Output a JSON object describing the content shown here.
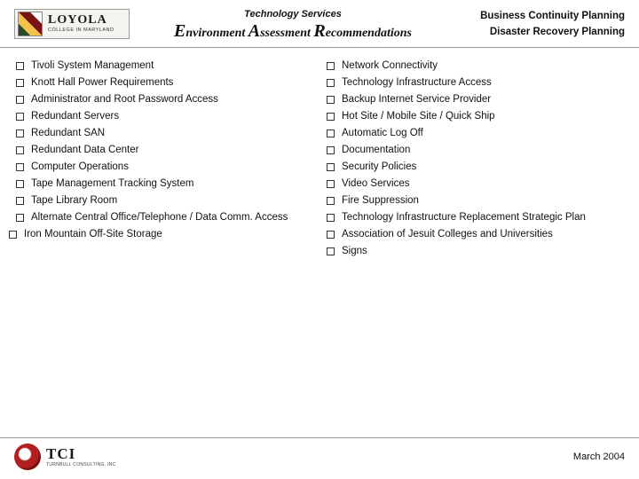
{
  "logo": {
    "name": "LOYOLA",
    "sub": "COLLEGE IN MARYLAND"
  },
  "header": {
    "line1": "Technology Services",
    "ear": {
      "E": "E",
      "e_rest": "nvironment ",
      "A": "A",
      "a_rest": "ssessment ",
      "R": "R",
      "r_rest": "ecommendations"
    },
    "right1": "Business Continuity Planning",
    "right2": "Disaster Recovery Planning"
  },
  "left": [
    "Tivoli System Management",
    "Knott Hall Power Requirements",
    "Administrator and Root Password Access",
    "Redundant Servers",
    "Redundant SAN",
    "Redundant Data Center",
    "Computer Operations",
    "Tape Management Tracking System",
    "Tape Library Room",
    "Alternate Central Office/Telephone / Data Comm. Access",
    "Iron Mountain Off-Site Storage"
  ],
  "right": [
    "Network Connectivity",
    "Technology Infrastructure Access",
    "Backup Internet Service Provider",
    "Hot Site / Mobile Site / Quick Ship",
    "Automatic Log Off",
    "Documentation",
    "Security Policies",
    "Video Services",
    "Fire Suppression",
    "Technology Infrastructure Replacement Strategic Plan",
    "Association of Jesuit Colleges and Universities",
    "Signs"
  ],
  "footer": {
    "tci": "TCI",
    "tci_sub": "TURNBULL CONSULTING, INC",
    "date": "March 2004"
  },
  "colors": {
    "text": "#111111",
    "rule": "#999999",
    "bg": "#ffffff"
  }
}
